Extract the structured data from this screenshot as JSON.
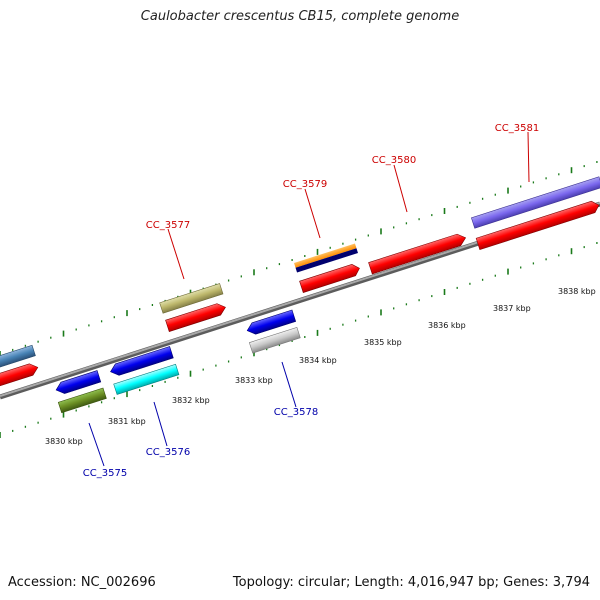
{
  "title": "Caulobacter crescentus CB15, complete genome",
  "footer": {
    "accession": "Accession: NC_002696",
    "topology": "Topology: circular; Length: 4,016,947 bp; Genes: 3,794"
  },
  "scale_labels": [
    "3830 kbp",
    "3831 kbp",
    "3832 kbp",
    "3833 kbp",
    "3834 kbp",
    "3835 kbp",
    "3836 kbp",
    "3837 kbp",
    "3838 kbp"
  ],
  "gene_labels": {
    "cc3575": "CC_3575",
    "cc3576": "CC_3576",
    "cc3577": "CC_3577",
    "cc3578": "CC_3578",
    "cc3579": "CC_3579",
    "cc3580": "CC_3580",
    "cc3581": "CC_3581"
  },
  "colors": {
    "forward_label": "#cc0000",
    "reverse_label": "#0000aa",
    "backbone": "#888888",
    "tick": "#1a7a1a"
  }
}
